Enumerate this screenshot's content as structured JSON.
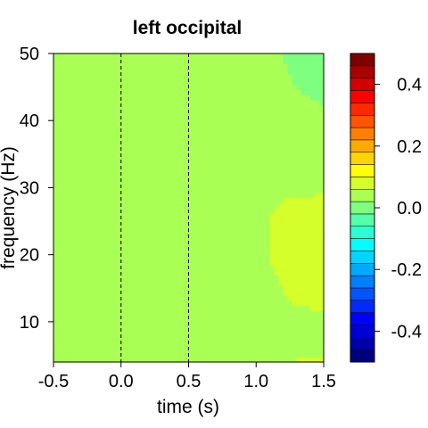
{
  "chart_data": {
    "type": "heatmap",
    "title": "left occipital",
    "xlabel": "time (s)",
    "ylabel": "frequency (Hz)",
    "xlim": [
      -0.5,
      1.5
    ],
    "ylim": [
      4,
      50
    ],
    "xticks": [
      -0.5,
      0.0,
      0.5,
      1.0,
      1.5
    ],
    "xtick_labels": [
      "-0.5",
      "0.0",
      "0.5",
      "1.0",
      "1.5"
    ],
    "yticks": [
      10,
      20,
      30,
      40,
      50
    ],
    "ytick_labels": [
      "10",
      "20",
      "30",
      "40",
      "50"
    ],
    "reference_lines_x": [
      0.0,
      0.5
    ],
    "colorbar": {
      "range": [
        -0.5,
        0.5
      ],
      "ticks": [
        -0.4,
        -0.2,
        0.0,
        0.2,
        0.4
      ],
      "tick_labels": [
        "-0.4",
        "-0.2",
        "0.0",
        "0.2",
        "0.4"
      ],
      "colors": [
        "#00007f",
        "#0000a9",
        "#0000d4",
        "#0000ff",
        "#002aff",
        "#0055ff",
        "#007fff",
        "#00aaff",
        "#00d4ff",
        "#00ffff",
        "#2affd4",
        "#55ffaa",
        "#7fff7f",
        "#aaff55",
        "#d4ff2a",
        "#ffff00",
        "#ffd400",
        "#ffaa00",
        "#ff7f00",
        "#ff5500",
        "#ff2a00",
        "#ff0000",
        "#d40000",
        "#a90000",
        "#7f0000"
      ]
    },
    "x": [
      -0.5,
      -0.3,
      -0.1,
      0.1,
      0.3,
      0.5,
      0.7,
      0.9,
      1.1,
      1.3,
      1.5
    ],
    "y": [
      5,
      10,
      15,
      20,
      25,
      30,
      35,
      40,
      45,
      50
    ],
    "z": [
      [
        0.05,
        0.05,
        0.05,
        0.05,
        0.05,
        0.05,
        0.05,
        0.05,
        0.05,
        0.06,
        0.06
      ],
      [
        0.05,
        0.05,
        0.05,
        0.05,
        0.05,
        0.05,
        0.05,
        0.05,
        0.05,
        0.05,
        0.05
      ],
      [
        0.02,
        0.02,
        0.02,
        0.02,
        0.02,
        0.02,
        0.04,
        0.05,
        0.05,
        0.07,
        0.08
      ],
      [
        0.02,
        0.02,
        0.02,
        0.02,
        0.02,
        0.02,
        0.03,
        0.05,
        0.06,
        0.09,
        0.1
      ],
      [
        0.02,
        0.02,
        0.02,
        0.03,
        0.05,
        0.05,
        0.05,
        0.05,
        0.06,
        0.09,
        0.1
      ],
      [
        0.02,
        0.02,
        0.02,
        0.03,
        0.04,
        0.05,
        0.05,
        0.05,
        0.05,
        0.05,
        0.05
      ],
      [
        0.03,
        0.02,
        0.02,
        0.02,
        0.02,
        0.02,
        0.02,
        0.02,
        0.02,
        0.02,
        0.02
      ],
      [
        0.05,
        0.05,
        0.05,
        0.05,
        0.05,
        0.05,
        0.05,
        0.05,
        0.05,
        0.05,
        0.04
      ],
      [
        0.05,
        0.05,
        0.05,
        0.05,
        0.05,
        0.05,
        0.05,
        0.05,
        0.04,
        0.02,
        0.0
      ],
      [
        0.05,
        0.05,
        0.05,
        0.05,
        0.05,
        0.05,
        0.05,
        0.05,
        0.04,
        0.0,
        -0.01
      ]
    ]
  }
}
